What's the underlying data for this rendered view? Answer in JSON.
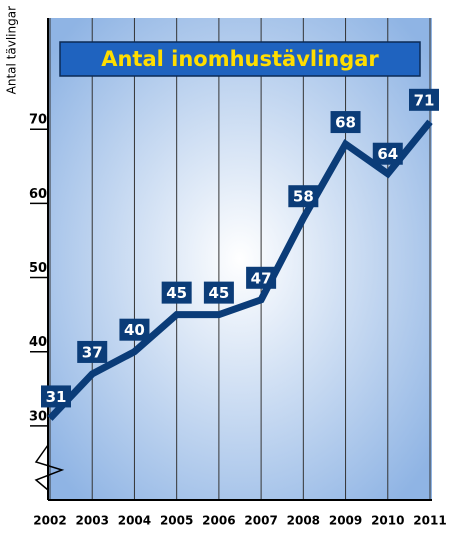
{
  "chart_data": {
    "type": "line",
    "title": "Antal inomhustävlingar",
    "y_label": "Antal tävlingar",
    "categories": [
      "2002",
      "2003",
      "2004",
      "2005",
      "2006",
      "2007",
      "2008",
      "2009",
      "2010",
      "2011"
    ],
    "values": [
      31,
      37,
      40,
      45,
      45,
      47,
      58,
      68,
      64,
      71
    ],
    "color": "#0b3c78",
    "label_color": "#0b3c78",
    "title_color": "#ffdd00",
    "title_bg": "#1f63bf",
    "ylim": [
      20,
      85
    ],
    "yticks": [
      30,
      40,
      50,
      60,
      70
    ],
    "grid": true
  }
}
